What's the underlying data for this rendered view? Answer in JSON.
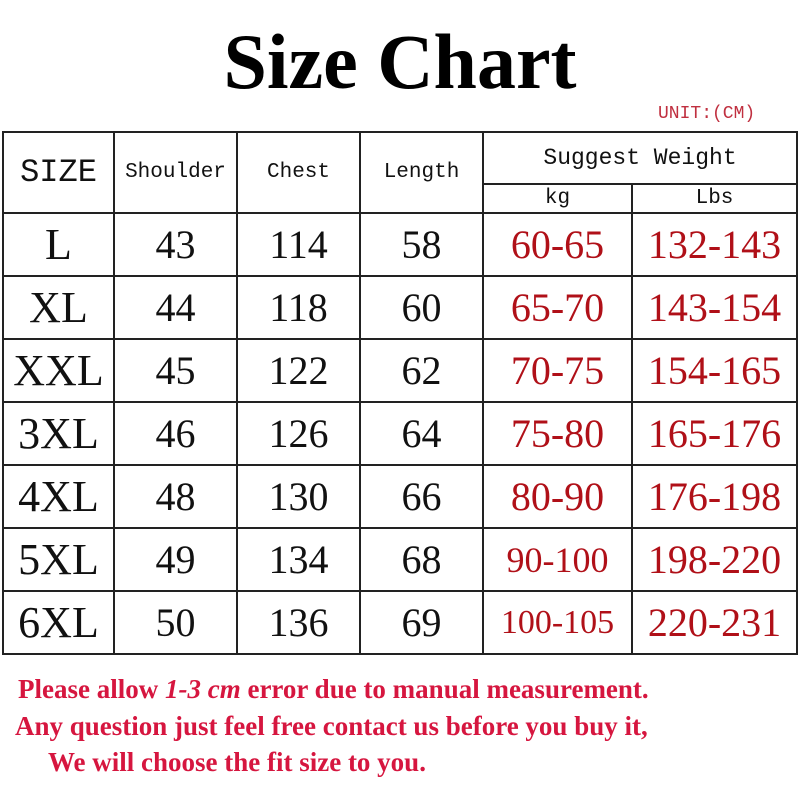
{
  "title": "Size Chart",
  "unit": "UNIT:(CM)",
  "headers": {
    "size": "SIZE",
    "shoulder": "Shoulder",
    "chest": "Chest",
    "length": "Length",
    "weight": "Suggest Weight",
    "kg": "kg",
    "lbs": "Lbs"
  },
  "rows": [
    {
      "size": "L",
      "shoulder": "43",
      "chest": "114",
      "length": "58",
      "kg": "60-65",
      "lbs": "132-143"
    },
    {
      "size": "XL",
      "shoulder": "44",
      "chest": "118",
      "length": "60",
      "kg": "65-70",
      "lbs": "143-154"
    },
    {
      "size": "XXL",
      "shoulder": "45",
      "chest": "122",
      "length": "62",
      "kg": "70-75",
      "lbs": "154-165"
    },
    {
      "size": "3XL",
      "shoulder": "46",
      "chest": "126",
      "length": "64",
      "kg": "75-80",
      "lbs": "165-176"
    },
    {
      "size": "4XL",
      "shoulder": "48",
      "chest": "130",
      "length": "66",
      "kg": "80-90",
      "lbs": "176-198"
    },
    {
      "size": "5XL",
      "shoulder": "49",
      "chest": "134",
      "length": "68",
      "kg": "90-100",
      "lbs": "198-220"
    },
    {
      "size": "6XL",
      "shoulder": "50",
      "chest": "136",
      "length": "69",
      "kg": "100-105",
      "lbs": "220-231"
    }
  ],
  "notes": {
    "line1_pre": "Please allow ",
    "line1_em": "1-3 cm",
    "line1_post": " error due to manual measurement.",
    "line2": "Any question just feel free contact us before you buy it,",
    "line3": "We will choose the fit size to you."
  },
  "colors": {
    "value_red": "#b01018",
    "note_red": "#d6163f"
  }
}
